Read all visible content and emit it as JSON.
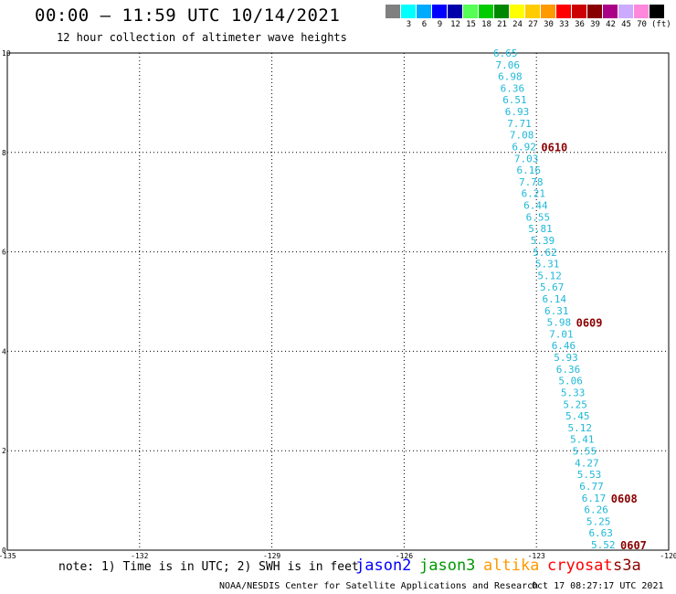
{
  "header": {
    "title": "00:00 – 11:59 UTC 10/14/2021",
    "subtitle": "12 hour collection of altimeter wave heights"
  },
  "legend": {
    "unit": "(ft)",
    "swatches": [
      {
        "color": "#808080",
        "label": ""
      },
      {
        "color": "#00ffff",
        "label": "3"
      },
      {
        "color": "#00aaff",
        "label": "6"
      },
      {
        "color": "#0000ff",
        "label": "9"
      },
      {
        "color": "#0000aa",
        "label": "12"
      },
      {
        "color": "#55ff55",
        "label": "15"
      },
      {
        "color": "#00cc00",
        "label": "18"
      },
      {
        "color": "#008800",
        "label": "21"
      },
      {
        "color": "#ffff00",
        "label": "24"
      },
      {
        "color": "#ffcc00",
        "label": "27"
      },
      {
        "color": "#ff9900",
        "label": "30"
      },
      {
        "color": "#ff0000",
        "label": "33"
      },
      {
        "color": "#cc0000",
        "label": "36"
      },
      {
        "color": "#880000",
        "label": "39"
      },
      {
        "color": "#aa0088",
        "label": "42"
      },
      {
        "color": "#ccaaff",
        "label": "45"
      },
      {
        "color": "#ff88dd",
        "label": "70"
      },
      {
        "color": "#000000",
        "label": ""
      }
    ]
  },
  "axes": {
    "x_ticks": [
      "-135",
      "-132",
      "-129",
      "-126",
      "-123",
      "-120"
    ],
    "y_ticks": [
      "0",
      "2",
      "4",
      "6",
      "8",
      "10"
    ],
    "x_range": [
      -135,
      -120
    ],
    "y_range": [
      0,
      10
    ],
    "grid": "dotted"
  },
  "track": {
    "values": [
      "6.65",
      "7.06",
      "6.98",
      "6.36",
      "6.51",
      "6.93",
      "7.71",
      "7.08",
      "6.92",
      "7.03",
      "6.16",
      "7.78",
      "6.21",
      "6.44",
      "6.55",
      "5.81",
      "5.39",
      "5.62",
      "5.31",
      "5.12",
      "5.67",
      "6.14",
      "6.31",
      "5.98",
      "7.01",
      "6.46",
      "5.93",
      "6.36",
      "5.06",
      "5.33",
      "5.25",
      "5.45",
      "5.12",
      "5.41",
      "5.55",
      "4.27",
      "5.53",
      "6.77",
      "6.17",
      "6.26",
      "5.25",
      "6.63",
      "5.52"
    ],
    "color": "#20b8d8"
  },
  "pass_times": [
    {
      "label": "0610",
      "after_index": 8
    },
    {
      "label": "0609",
      "after_index": 23
    },
    {
      "label": "0608",
      "after_index": 38
    },
    {
      "label": "0607",
      "after_index": 42
    }
  ],
  "note": "note:  1) Time is in UTC;  2) SWH is in feet",
  "satellites": [
    {
      "name": "jason2",
      "color": "#0000ff"
    },
    {
      "name": "jason3",
      "color": "#009900"
    },
    {
      "name": "altika",
      "color": "#ff9900"
    },
    {
      "name": "cryosat",
      "color": "#ff0000"
    },
    {
      "name": "s3a",
      "color": "#8b0000"
    }
  ],
  "footer": {
    "left": "NOAA/NESDIS Center for Satellite Applications and Research",
    "right": "Oct 17 08:27:17 UTC 2021"
  }
}
